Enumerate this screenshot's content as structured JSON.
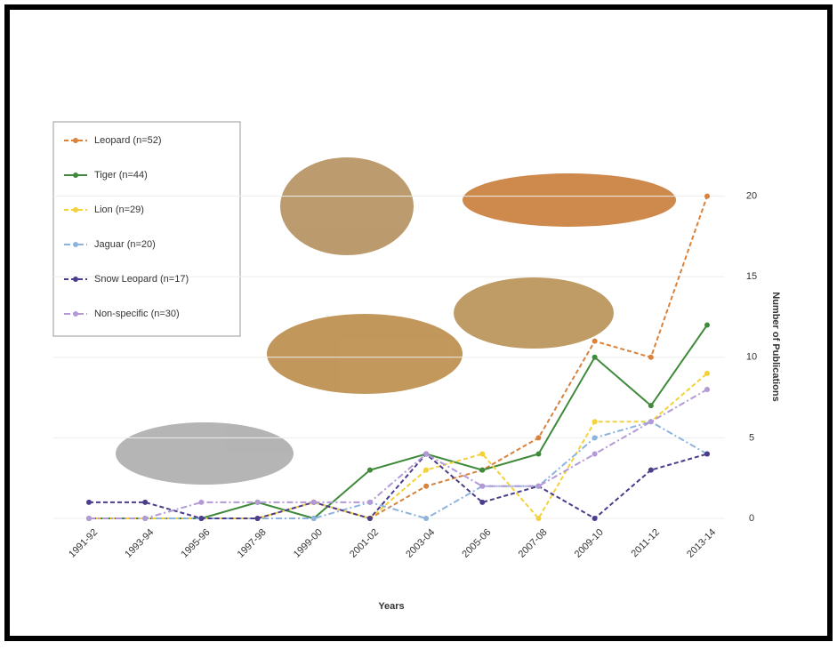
{
  "chart_data": {
    "type": "line",
    "x_label": "Years",
    "y_label": "Number of Publications",
    "categories": [
      "1991-92",
      "1993-94",
      "1995-96",
      "1997-98",
      "1999-00",
      "2001-02",
      "2003-04",
      "2005-06",
      "2007-08",
      "2009-10",
      "2011-12",
      "2013-14"
    ],
    "series": [
      {
        "name": "Leopard (n=52)",
        "color": "#d9823b",
        "style": "dashed",
        "values": [
          0,
          0,
          0,
          0,
          1,
          0,
          2,
          3,
          5,
          11,
          10,
          20
        ]
      },
      {
        "name": "Tiger (n=44)",
        "color": "#3f8a3a",
        "style": "solid",
        "values": [
          0,
          0,
          0,
          1,
          0,
          3,
          4,
          3,
          4,
          10,
          7,
          12
        ]
      },
      {
        "name": "Lion (n=29)",
        "color": "#f2d23a",
        "style": "dashed",
        "values": [
          0,
          0,
          0,
          0,
          1,
          0,
          3,
          4,
          0,
          6,
          6,
          9
        ]
      },
      {
        "name": "Jaguar (n=20)",
        "color": "#8fb3df",
        "style": "dashdot",
        "values": [
          0,
          0,
          0,
          0,
          0,
          1,
          0,
          2,
          2,
          5,
          6,
          4
        ]
      },
      {
        "name": "Snow Leopard (n=17)",
        "color": "#4b3c8c",
        "style": "dashed",
        "values": [
          1,
          1,
          0,
          0,
          1,
          0,
          4,
          1,
          2,
          0,
          3,
          4
        ]
      },
      {
        "name": "Non-specific (n=30)",
        "color": "#b39ad6",
        "style": "dashdot",
        "values": [
          0,
          0,
          1,
          1,
          1,
          1,
          4,
          2,
          2,
          4,
          6,
          8
        ]
      }
    ],
    "ylim": [
      0,
      25
    ],
    "yticks": [
      0,
      5,
      10,
      15,
      20
    ],
    "y_axis_side": "right",
    "grid": true,
    "legend": "top-left"
  }
}
